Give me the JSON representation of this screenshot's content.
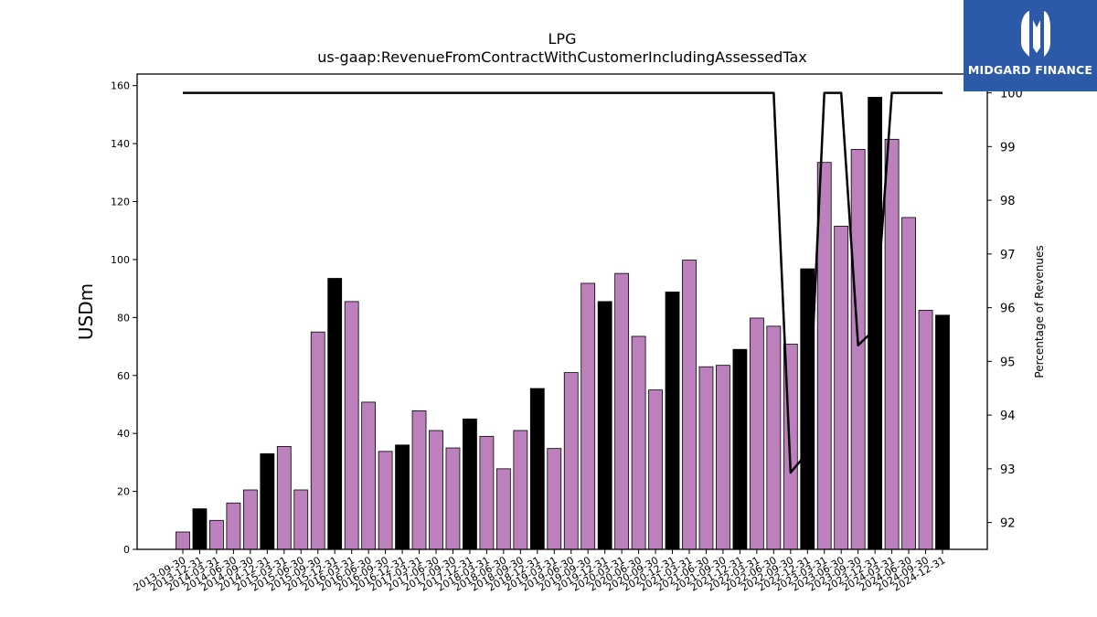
{
  "chart_data": {
    "type": "bar",
    "title": "LPG",
    "subtitle": "us-gaap:RevenueFromContractWithCustomerIncludingAssessedTax",
    "ylabel": "USDm",
    "y2label": "Percentage of Revenues",
    "ylim": [
      0,
      164
    ],
    "y2lim": [
      91.5,
      100.35
    ],
    "yticks": [
      0,
      20,
      40,
      60,
      80,
      100,
      120,
      140,
      160
    ],
    "y2ticks": [
      92,
      93,
      94,
      95,
      96,
      97,
      98,
      99,
      100
    ],
    "categories": [
      "2013-09-30",
      "2013-12-31",
      "2014-03-31",
      "2014-06-30",
      "2014-09-30",
      "2014-12-31",
      "2015-03-31",
      "2015-06-30",
      "2015-09-30",
      "2015-12-31",
      "2016-03-31",
      "2016-06-30",
      "2016-09-30",
      "2016-12-31",
      "2017-03-31",
      "2017-06-30",
      "2017-09-30",
      "2017-12-31",
      "2018-03-31",
      "2018-06-30",
      "2018-09-30",
      "2018-12-31",
      "2019-03-31",
      "2019-06-30",
      "2019-09-30",
      "2019-12-31",
      "2020-03-31",
      "2020-06-30",
      "2020-09-30",
      "2020-12-31",
      "2021-03-31",
      "2021-06-30",
      "2021-09-30",
      "2021-12-31",
      "2022-03-31",
      "2022-06-30",
      "2022-09-30",
      "2022-12-31",
      "2023-03-31",
      "2023-06-30",
      "2023-09-30",
      "2023-12-31",
      "2024-03-31",
      "2024-06-30",
      "2024-09-30",
      "2024-12-31"
    ],
    "series": [
      {
        "values": [
          6,
          14,
          10,
          16,
          20.5,
          33,
          35.5,
          20.5,
          75,
          93.5,
          85.5,
          50.8,
          33.8,
          36,
          47.8,
          41,
          35,
          45,
          39,
          27.8,
          41,
          55.5,
          34.8,
          61,
          91.8,
          85.5,
          95.2,
          73.5,
          55,
          88.8,
          99.8,
          63,
          63.5,
          69,
          79.8,
          77,
          70.8,
          96.8,
          133.5,
          111.5,
          138,
          156,
          141.5,
          114.5,
          82.5,
          80.8
        ],
        "highlight": [
          false,
          true,
          false,
          false,
          false,
          true,
          false,
          false,
          false,
          true,
          false,
          false,
          false,
          true,
          false,
          false,
          false,
          true,
          false,
          false,
          false,
          true,
          false,
          false,
          false,
          true,
          false,
          false,
          false,
          true,
          false,
          false,
          false,
          true,
          false,
          false,
          false,
          true,
          false,
          false,
          false,
          true,
          false,
          false,
          false,
          true
        ]
      },
      {
        "axis": "right",
        "type": "line",
        "x": [
          "2013-09-30",
          "2022-06-30",
          "2022-09-30",
          "2022-12-31",
          "2023-03-31",
          "2023-06-30",
          "2023-09-30",
          "2023-12-31",
          "2024-03-31",
          "2024-12-31"
        ],
        "values": [
          100,
          100,
          92.93,
          93.3,
          100,
          100,
          95.3,
          95.6,
          100,
          100
        ]
      }
    ],
    "colors": {
      "bar": "#bc80bd",
      "bar_highlight": "#000000",
      "line": "#000000",
      "edge": "#000000"
    },
    "grid": false,
    "legend": "none"
  },
  "logo": {
    "text": "MIDGARD FINANCE",
    "icon": "midgard-logo-icon"
  }
}
